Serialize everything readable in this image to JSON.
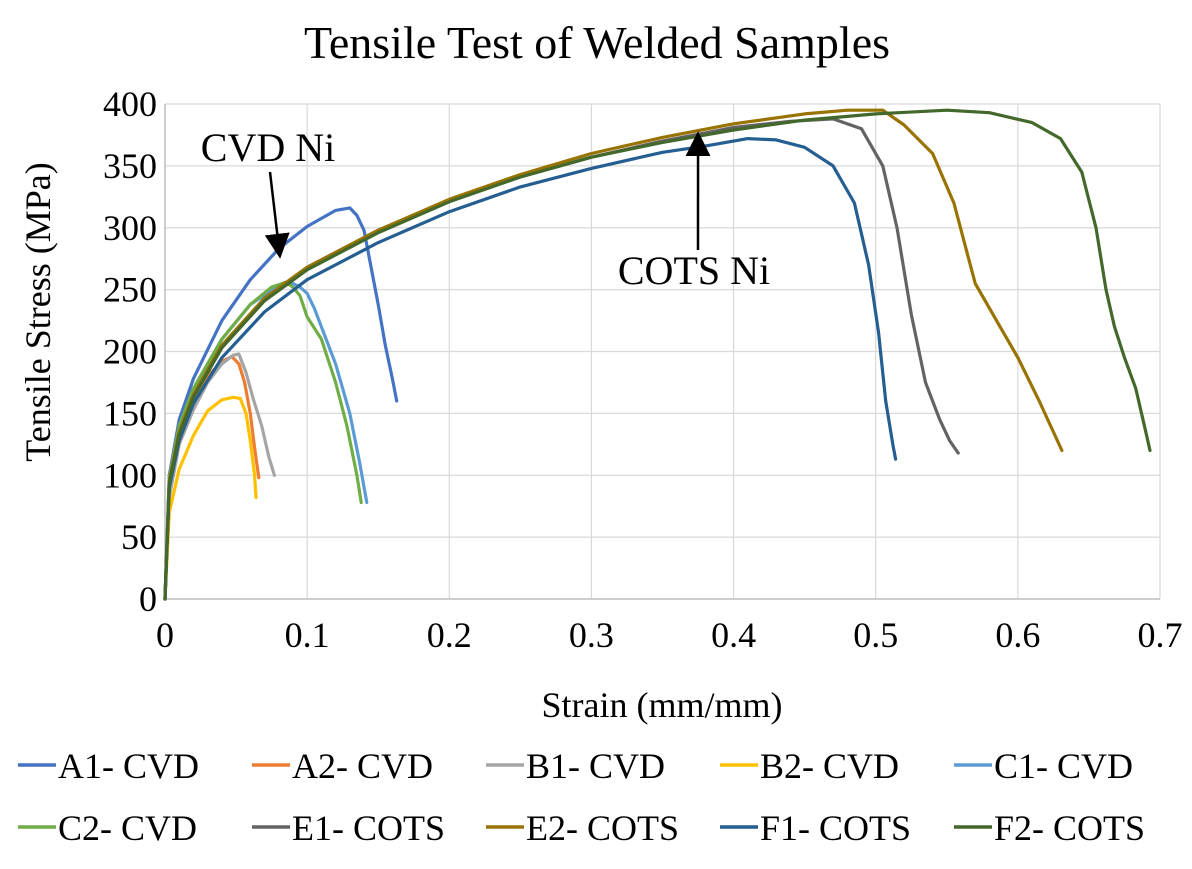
{
  "chart_data": {
    "type": "line",
    "title": "Tensile Test of Welded Samples",
    "xlabel": "Strain (mm/mm)",
    "ylabel": "Tensile Stress (MPa)",
    "xlim": [
      0,
      0.7
    ],
    "ylim": [
      0,
      400
    ],
    "xticks": [
      0,
      0.1,
      0.2,
      0.3,
      0.4,
      0.5,
      0.6,
      0.7
    ],
    "xtick_labels": [
      "0",
      "0.1",
      "0.2",
      "0.3",
      "0.4",
      "0.5",
      "0.6",
      "0.7"
    ],
    "yticks": [
      0,
      50,
      100,
      150,
      200,
      250,
      300,
      350,
      400
    ],
    "ytick_labels": [
      "0",
      "50",
      "100",
      "150",
      "200",
      "250",
      "300",
      "350",
      "400"
    ],
    "grid": true,
    "legend_position": "bottom",
    "annotations": [
      {
        "text": "CVD Ni",
        "points_to": [
          0.08,
          285
        ]
      },
      {
        "text": "COTS Ni",
        "points_to": [
          0.375,
          368
        ]
      }
    ],
    "series": [
      {
        "name": "A1- CVD",
        "color": "#4472C4",
        "x": [
          0,
          0.003,
          0.01,
          0.02,
          0.04,
          0.06,
          0.08,
          0.1,
          0.12,
          0.13,
          0.135,
          0.14,
          0.145,
          0.15,
          0.155,
          0.16,
          0.163
        ],
        "y": [
          0,
          100,
          145,
          178,
          225,
          258,
          283,
          301,
          314,
          316,
          310,
          298,
          268,
          238,
          205,
          178,
          160
        ]
      },
      {
        "name": "A2- CVD",
        "color": "#ED7D31",
        "x": [
          0,
          0.003,
          0.01,
          0.02,
          0.03,
          0.04,
          0.047,
          0.052,
          0.056,
          0.06,
          0.063,
          0.066
        ],
        "y": [
          0,
          88,
          128,
          158,
          180,
          192,
          196,
          190,
          175,
          150,
          122,
          98
        ]
      },
      {
        "name": "B1- CVD",
        "color": "#A5A5A5",
        "x": [
          0,
          0.003,
          0.01,
          0.02,
          0.03,
          0.04,
          0.048,
          0.052,
          0.057,
          0.062,
          0.068,
          0.073,
          0.077
        ],
        "y": [
          0,
          82,
          125,
          153,
          175,
          190,
          197,
          198,
          183,
          162,
          140,
          115,
          100
        ]
      },
      {
        "name": "B2- CVD",
        "color": "#FFC000",
        "x": [
          0,
          0.003,
          0.01,
          0.02,
          0.03,
          0.04,
          0.048,
          0.053,
          0.057,
          0.06,
          0.063,
          0.064
        ],
        "y": [
          0,
          70,
          105,
          132,
          152,
          161,
          163,
          162,
          150,
          128,
          100,
          82
        ]
      },
      {
        "name": "C1- CVD",
        "color": "#5B9BD5",
        "x": [
          0,
          0.003,
          0.01,
          0.02,
          0.04,
          0.06,
          0.08,
          0.09,
          0.095,
          0.1,
          0.105,
          0.11,
          0.12,
          0.13,
          0.137,
          0.142
        ],
        "y": [
          0,
          98,
          140,
          170,
          210,
          238,
          253,
          255,
          252,
          247,
          235,
          220,
          190,
          150,
          110,
          78
        ]
      },
      {
        "name": "C2- CVD",
        "color": "#70AD47",
        "x": [
          0,
          0.003,
          0.01,
          0.02,
          0.04,
          0.06,
          0.075,
          0.085,
          0.09,
          0.095,
          0.1,
          0.11,
          0.12,
          0.128,
          0.135,
          0.138
        ],
        "y": [
          0,
          98,
          140,
          170,
          210,
          238,
          252,
          256,
          252,
          245,
          228,
          210,
          175,
          140,
          100,
          78
        ]
      },
      {
        "name": "E1- COTS",
        "color": "#636363",
        "x": [
          0,
          0.003,
          0.01,
          0.02,
          0.04,
          0.07,
          0.1,
          0.15,
          0.2,
          0.25,
          0.3,
          0.35,
          0.4,
          0.44,
          0.47,
          0.49,
          0.505,
          0.515,
          0.525,
          0.535,
          0.545,
          0.552,
          0.558
        ],
        "y": [
          0,
          95,
          135,
          165,
          205,
          243,
          268,
          298,
          322,
          341,
          357,
          370,
          381,
          386,
          388,
          380,
          350,
          300,
          230,
          175,
          145,
          128,
          118
        ]
      },
      {
        "name": "E2- COTS",
        "color": "#997300",
        "x": [
          0,
          0.003,
          0.01,
          0.02,
          0.04,
          0.07,
          0.1,
          0.15,
          0.2,
          0.25,
          0.3,
          0.35,
          0.4,
          0.45,
          0.48,
          0.505,
          0.52,
          0.54,
          0.555,
          0.57,
          0.585,
          0.6,
          0.615,
          0.631
        ],
        "y": [
          0,
          95,
          135,
          165,
          205,
          243,
          268,
          298,
          323,
          343,
          360,
          373,
          384,
          392,
          395,
          395,
          383,
          360,
          320,
          255,
          225,
          195,
          160,
          120
        ]
      },
      {
        "name": "F1- COTS",
        "color": "#255E91",
        "x": [
          0,
          0.003,
          0.01,
          0.02,
          0.04,
          0.07,
          0.1,
          0.15,
          0.2,
          0.25,
          0.3,
          0.35,
          0.38,
          0.41,
          0.43,
          0.45,
          0.47,
          0.485,
          0.495,
          0.502,
          0.507,
          0.512,
          0.514
        ],
        "y": [
          0,
          90,
          128,
          158,
          195,
          232,
          258,
          288,
          313,
          333,
          348,
          361,
          366,
          372,
          371,
          365,
          350,
          320,
          270,
          215,
          160,
          125,
          113
        ]
      },
      {
        "name": "F2- COTS",
        "color": "#43682B",
        "x": [
          0,
          0.003,
          0.01,
          0.02,
          0.04,
          0.07,
          0.1,
          0.15,
          0.2,
          0.25,
          0.3,
          0.35,
          0.4,
          0.45,
          0.5,
          0.55,
          0.58,
          0.61,
          0.63,
          0.645,
          0.655,
          0.662,
          0.668,
          0.675,
          0.683,
          0.69,
          0.693
        ],
        "y": [
          0,
          93,
          133,
          163,
          203,
          241,
          266,
          296,
          321,
          341,
          357,
          369,
          379,
          387,
          392,
          395,
          393,
          385,
          372,
          345,
          300,
          250,
          220,
          195,
          170,
          135,
          120
        ]
      }
    ]
  }
}
